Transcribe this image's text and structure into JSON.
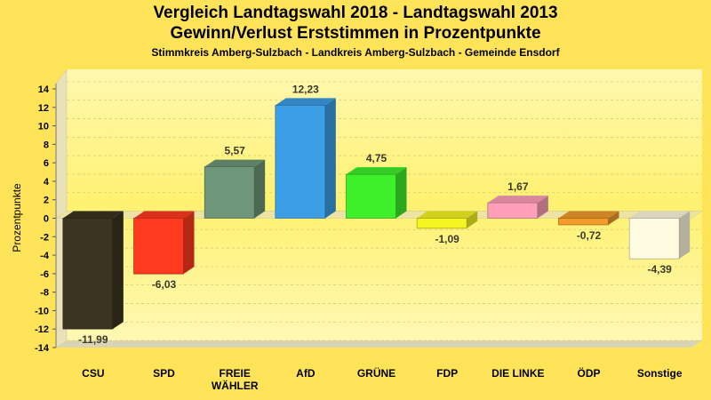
{
  "title": "Vergleich Landtagswahl 2018 - Landtagswahl 2013",
  "subtitle": "Gewinn/Verlust Erststimmen in Prozentpunkte",
  "subsubtitle": "Stimmkreis Amberg-Sulzbach - Landkreis Amberg-Sulzbach - Gemeinde Ensdorf",
  "chart_data": {
    "type": "bar",
    "ylabel": "Prozentpunkte",
    "ylim": [
      -14,
      14
    ],
    "yticks": [
      14,
      12,
      10,
      8,
      6,
      4,
      2,
      0,
      -2,
      -4,
      -6,
      -8,
      -10,
      -12,
      -14
    ],
    "grid": true,
    "categories": [
      {
        "label": [
          "CSU"
        ],
        "value": -11.99,
        "value_label": "-11,99",
        "color": "#3b3420"
      },
      {
        "label": [
          "SPD"
        ],
        "value": -6.03,
        "value_label": "-6,03",
        "color": "#ff3a1e"
      },
      {
        "label": [
          "FREIE",
          "WÄHLER"
        ],
        "value": 5.57,
        "value_label": "5,57",
        "color": "#6e9678"
      },
      {
        "label": [
          "AfD"
        ],
        "value": 12.23,
        "value_label": "12,23",
        "color": "#3c9ee6"
      },
      {
        "label": [
          "GRÜNE"
        ],
        "value": 4.75,
        "value_label": "4,75",
        "color": "#3ef02a"
      },
      {
        "label": [
          "FDP"
        ],
        "value": -1.09,
        "value_label": "-1,09",
        "color": "#f5f522"
      },
      {
        "label": [
          "DIE LINKE"
        ],
        "value": 1.67,
        "value_label": "1,67",
        "color": "#ff9fba"
      },
      {
        "label": [
          "ÖDP"
        ],
        "value": -0.72,
        "value_label": "-0,72",
        "color": "#f29a2a"
      },
      {
        "label": [
          "Sonstige"
        ],
        "value": -4.39,
        "value_label": "-4,39",
        "color": "#fffbe0"
      }
    ]
  }
}
